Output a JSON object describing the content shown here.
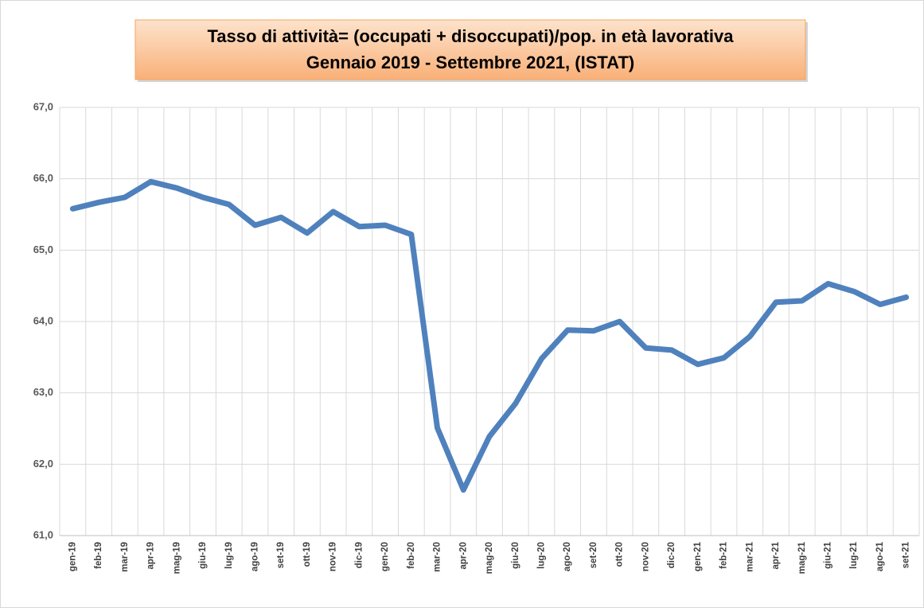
{
  "chart_data": {
    "type": "line",
    "title": "Tasso di attività= (occupati + disoccupati)/pop. in età lavorativa",
    "subtitle": "Gennaio 2019 - Settembre 2021, (ISTAT)",
    "categories": [
      "gen-19",
      "feb-19",
      "mar-19",
      "apr-19",
      "mag-19",
      "giu-19",
      "lug-19",
      "ago-19",
      "set-19",
      "ott-19",
      "nov-19",
      "dic-19",
      "gen-20",
      "feb-20",
      "mar-20",
      "apr-20",
      "mag-20",
      "giu-20",
      "lug-20",
      "ago-20",
      "set-20",
      "ott-20",
      "nov-20",
      "dic-20",
      "gen-21",
      "feb-21",
      "mar-21",
      "apr-21",
      "mag-21",
      "giu-21",
      "lug-21",
      "ago-21",
      "set-21"
    ],
    "series": [
      {
        "name": "Tasso di attività",
        "color": "#4f81bd",
        "values": [
          65.58,
          65.67,
          65.74,
          65.96,
          65.87,
          65.74,
          65.64,
          65.35,
          65.46,
          65.24,
          65.54,
          65.33,
          65.35,
          65.22,
          62.51,
          61.64,
          62.39,
          62.85,
          63.48,
          63.88,
          63.87,
          64.0,
          63.63,
          63.6,
          63.4,
          63.49,
          63.79,
          64.27,
          64.29,
          64.53,
          64.42,
          64.24,
          64.34
        ]
      }
    ],
    "ylim": [
      61,
      67
    ],
    "yticks": [
      {
        "value": 61,
        "label": "61,0"
      },
      {
        "value": 62,
        "label": "62,0"
      },
      {
        "value": 63,
        "label": "63,0"
      },
      {
        "value": 64,
        "label": "64,0"
      },
      {
        "value": 65,
        "label": "65,0"
      },
      {
        "value": 66,
        "label": "66,0"
      },
      {
        "value": 67,
        "label": "67,0"
      }
    ],
    "grid": true
  }
}
